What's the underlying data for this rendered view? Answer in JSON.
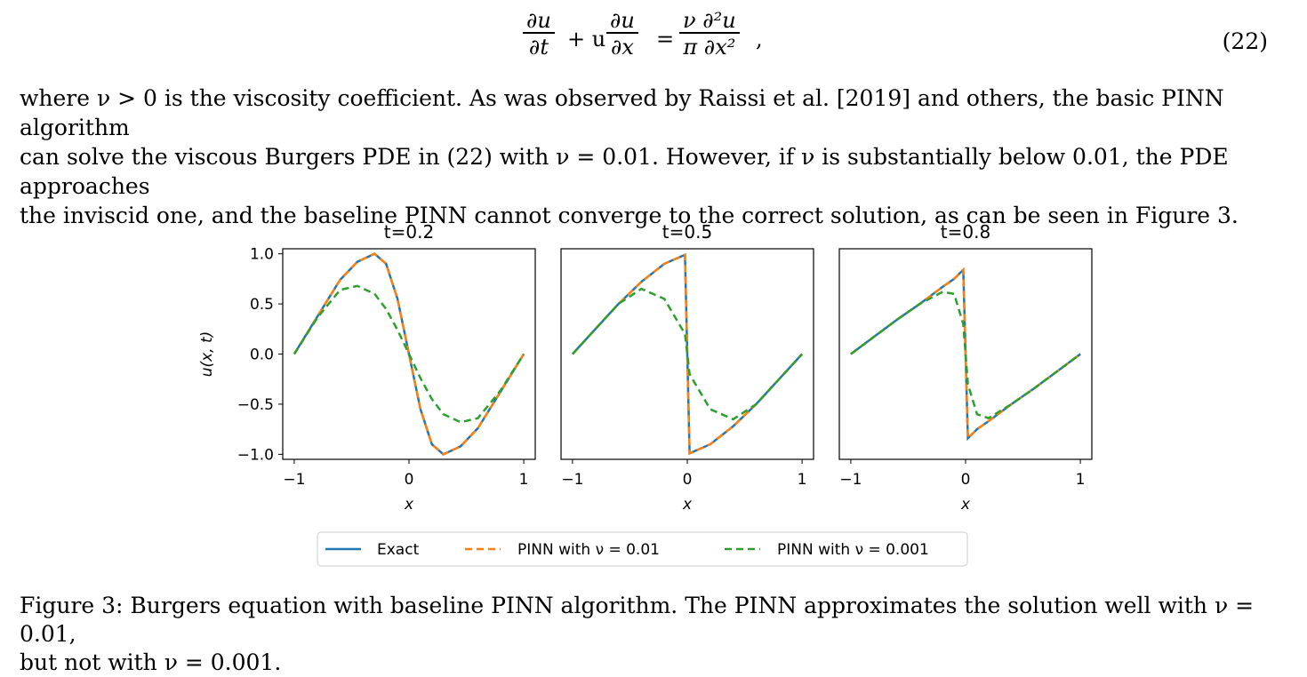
{
  "equation": {
    "du": "∂u",
    "dt": "∂t",
    "plus": "+ u",
    "dx": "∂x",
    "equals": "=",
    "nu_num": "ν ∂²u",
    "nu_den": "π ∂x²",
    "comma": ",",
    "number": "(22)"
  },
  "paragraph": {
    "lines": [
      "where ν > 0 is the viscosity coefficient. As was observed by Raissi et al. [2019] and others, the basic PINN algorithm",
      "can solve the viscous Burgers PDE in (22) with ν = 0.01. However, if ν is substantially below 0.01, the PDE approaches",
      "the inviscid one, and the baseline PINN cannot converge to the correct solution, as can be seen in Figure 3."
    ]
  },
  "caption": {
    "lines": [
      "Figure 3: Burgers equation with baseline PINN algorithm. The PINN approximates the solution well with ν = 0.01,",
      "but not with ν = 0.001."
    ]
  },
  "chart_data": {
    "type": "line",
    "ylabel": "u(x, t)",
    "xlabel": "x",
    "xlim": [
      -1.1,
      1.1
    ],
    "ylim": [
      -1.05,
      1.05
    ],
    "xticks": [
      -1,
      0,
      1
    ],
    "xtick_labels": [
      "−1",
      "0",
      "1"
    ],
    "yticks": [
      1.0,
      0.5,
      0.0,
      -0.5,
      -1.0
    ],
    "ytick_labels": [
      "1.0",
      "0.5",
      "0.0",
      "−0.5",
      "−1.0"
    ],
    "legend": [
      {
        "name": "Exact",
        "color": "#1f77b4",
        "style": "solid"
      },
      {
        "name": "PINN with ν = 0.01",
        "color": "#ff7f0e",
        "style": "dashed"
      },
      {
        "name": "PINN with ν = 0.001",
        "color": "#2ca02c",
        "style": "dashed"
      }
    ],
    "legend_placement": "bottom-center",
    "panels": [
      {
        "title": "t=0.2",
        "x": [
          -1.0,
          -0.8,
          -0.6,
          -0.45,
          -0.3,
          -0.2,
          -0.1,
          0.0,
          0.1,
          0.2,
          0.3,
          0.45,
          0.6,
          0.8,
          1.0
        ],
        "exact": [
          0.0,
          0.37,
          0.74,
          0.92,
          1.0,
          0.9,
          0.55,
          0.0,
          -0.55,
          -0.9,
          -1.0,
          -0.92,
          -0.74,
          -0.37,
          0.0
        ],
        "pinn_001": [
          0.0,
          0.37,
          0.74,
          0.92,
          1.0,
          0.9,
          0.55,
          0.0,
          -0.55,
          -0.9,
          -1.0,
          -0.92,
          -0.74,
          -0.37,
          0.0
        ],
        "pinn_0001": [
          0.0,
          0.36,
          0.64,
          0.68,
          0.6,
          0.45,
          0.24,
          0.0,
          -0.24,
          -0.45,
          -0.6,
          -0.68,
          -0.64,
          -0.36,
          0.0
        ]
      },
      {
        "title": "t=0.5",
        "x": [
          -1.0,
          -0.8,
          -0.6,
          -0.4,
          -0.2,
          -0.02,
          0.0,
          0.02,
          0.2,
          0.4,
          0.6,
          0.8,
          1.0
        ],
        "exact": [
          0.0,
          0.25,
          0.5,
          0.72,
          0.9,
          0.99,
          0.0,
          -0.99,
          -0.9,
          -0.72,
          -0.5,
          -0.25,
          0.0
        ],
        "pinn_001": [
          0.0,
          0.25,
          0.5,
          0.72,
          0.9,
          0.99,
          0.0,
          -0.99,
          -0.9,
          -0.72,
          -0.5,
          -0.25,
          0.0
        ],
        "pinn_0001": [
          0.0,
          0.25,
          0.5,
          0.65,
          0.55,
          0.2,
          0.0,
          -0.2,
          -0.55,
          -0.65,
          -0.5,
          -0.25,
          0.0
        ]
      },
      {
        "title": "t=0.8",
        "x": [
          -1.0,
          -0.8,
          -0.6,
          -0.4,
          -0.2,
          -0.1,
          -0.02,
          0.0,
          0.02,
          0.1,
          0.2,
          0.4,
          0.6,
          0.8,
          1.0
        ],
        "exact": [
          0.0,
          0.17,
          0.34,
          0.5,
          0.67,
          0.75,
          0.84,
          0.0,
          -0.84,
          -0.75,
          -0.67,
          -0.5,
          -0.34,
          -0.17,
          0.0
        ],
        "pinn_001": [
          0.0,
          0.17,
          0.34,
          0.5,
          0.67,
          0.75,
          0.84,
          0.0,
          -0.84,
          -0.75,
          -0.67,
          -0.5,
          -0.34,
          -0.17,
          0.0
        ],
        "pinn_0001": [
          0.0,
          0.17,
          0.34,
          0.5,
          0.62,
          0.6,
          0.3,
          0.0,
          -0.3,
          -0.6,
          -0.64,
          -0.5,
          -0.34,
          -0.17,
          0.0
        ]
      }
    ]
  }
}
